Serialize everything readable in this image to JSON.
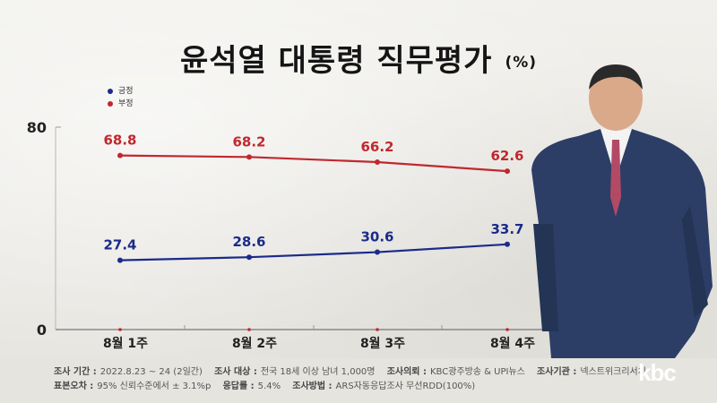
{
  "title": "윤석열 대통령 직무평가",
  "unit": "(%)",
  "legend": {
    "positive": "긍정",
    "negative": "부정"
  },
  "colors": {
    "positive": "#1a2b8a",
    "negative": "#c0282d"
  },
  "chart_data": {
    "type": "line",
    "title": "윤석열 대통령 직무평가",
    "categories": [
      "8월 1주",
      "8월 2주",
      "8월 3주",
      "8월 4주"
    ],
    "series": [
      {
        "name": "긍정",
        "values": [
          27.4,
          28.6,
          30.6,
          33.7
        ]
      },
      {
        "name": "부정",
        "values": [
          68.8,
          68.2,
          66.2,
          62.6
        ]
      }
    ],
    "ylim": [
      0,
      80
    ],
    "yticks": [
      "0",
      "80"
    ],
    "data_labels": {
      "positive": [
        "27.4",
        "28.6",
        "30.6",
        "33.7"
      ],
      "negative": [
        "68.8",
        "68.2",
        "66.2",
        "62.6"
      ]
    },
    "legend_position": "top-left",
    "grid": false
  },
  "footer": {
    "period_label": "조사 기간 :",
    "period_value": "2022.8.23 ~ 24 (2일간)",
    "target_label": "조사 대상 :",
    "target_value": "전국 18세 이상 남녀 1,000명",
    "client_label": "조사의뢰 :",
    "client_value": "KBC광주방송 & UPI뉴스",
    "agency_label": "조사기관 :",
    "agency_value": "넥스트위크리서치",
    "error_label": "표본오차 :",
    "error_value": "95% 신뢰수준에서 ± 3.1%p",
    "response_label": "응답률 :",
    "response_value": "5.4%",
    "method_label": "조사방법 :",
    "method_value": "ARS자동응답조사 무선RDD(100%)"
  },
  "logo": "kbc"
}
